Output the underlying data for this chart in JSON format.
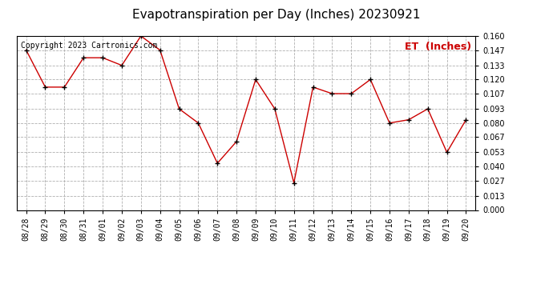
{
  "title": "Evapotranspiration per Day (Inches) 20230921",
  "copyright": "Copyright 2023 Cartronics.com",
  "legend_label": "ET  (Inches)",
  "x_labels": [
    "08/28",
    "08/29",
    "08/30",
    "08/31",
    "09/01",
    "09/02",
    "09/03",
    "09/04",
    "09/05",
    "09/06",
    "09/07",
    "09/08",
    "09/09",
    "09/10",
    "09/11",
    "09/12",
    "09/13",
    "09/14",
    "09/15",
    "09/16",
    "09/17",
    "09/18",
    "09/19",
    "09/20"
  ],
  "y_values": [
    0.147,
    0.113,
    0.113,
    0.14,
    0.14,
    0.133,
    0.16,
    0.147,
    0.093,
    0.08,
    0.043,
    0.063,
    0.12,
    0.093,
    0.025,
    0.113,
    0.107,
    0.107,
    0.12,
    0.08,
    0.083,
    0.093,
    0.053,
    0.083
  ],
  "y_ticks": [
    0.0,
    0.013,
    0.027,
    0.04,
    0.053,
    0.067,
    0.08,
    0.093,
    0.107,
    0.12,
    0.133,
    0.147,
    0.16
  ],
  "y_min": 0.0,
  "y_max": 0.16,
  "line_color": "#cc0000",
  "marker_color": "#000000",
  "grid_color": "#b0b0b0",
  "background_color": "#ffffff",
  "title_fontsize": 11,
  "copyright_fontsize": 7,
  "legend_fontsize": 9,
  "tick_fontsize": 7
}
